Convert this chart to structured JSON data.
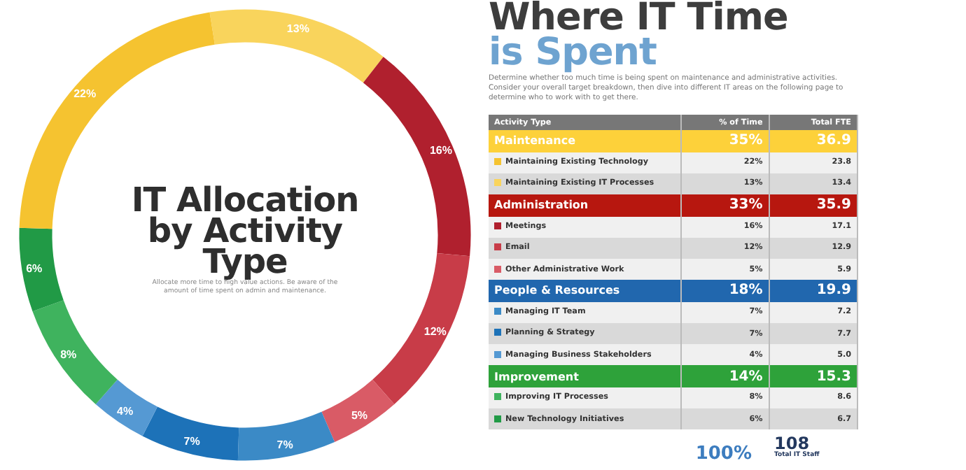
{
  "chart_data": [
    {
      "type": "donut",
      "title": "IT Allocation by Activity Type",
      "subtitle": "Allocate more time to high value actions. Be aware of the amount of time spent on admin and maintenance.",
      "categories": [
        null,
        null,
        null,
        null,
        null,
        null,
        null,
        null,
        null,
        null
      ],
      "values": [
        13,
        16,
        12,
        5,
        7,
        7,
        4,
        8,
        6,
        22
      ],
      "value_labels": [
        "13%",
        "16%",
        "12%",
        "5%",
        "7%",
        "7%",
        "4%",
        "8%",
        "6%",
        "22%"
      ],
      "colors": [
        "#f9d45c",
        "#b0202e",
        "#c83c48",
        "#d95b66",
        "#3b8ac6",
        "#1d72b8",
        "#5599d3",
        "#3fb35e",
        "#219a46",
        "#f5c330"
      ]
    },
    {
      "type": "other",
      "title": "Where IT Time",
      "subtitle": "is Spent",
      "annotations": [
        "Determine whether too much time is being spent on maintenance and administrative activities. Consider your overall target breakdown, then dive into different IT areas on the following page to determine who to work with to get there.",
        "Activity Type",
        "% of Time",
        "Total FTE",
        "Maintenance",
        "35%",
        "36.9",
        "Maintaining Existing Technology",
        "22%",
        "23.8",
        "Maintaining Existing IT Processes",
        "13%",
        "13.4",
        "Administration",
        "33%",
        "35.9",
        "Meetings",
        "16%",
        "17.1",
        "Email",
        "12%",
        "12.9",
        "Other Administrative Work",
        "5%",
        "5.9",
        "People & Resources",
        "18%",
        "19.9",
        "Managing IT Team",
        "7%",
        "7.2",
        "Planning & Strategy",
        "7%",
        "7.7",
        "Managing Business Stakeholders",
        "4%",
        "5.0",
        "Improvement",
        "14%",
        "15.3",
        "Improving IT Processes",
        "8%",
        "8.6",
        "New Technology Initiatives",
        "6%",
        "6.7",
        "100%",
        "108",
        "Total IT Staff"
      ]
    }
  ]
}
